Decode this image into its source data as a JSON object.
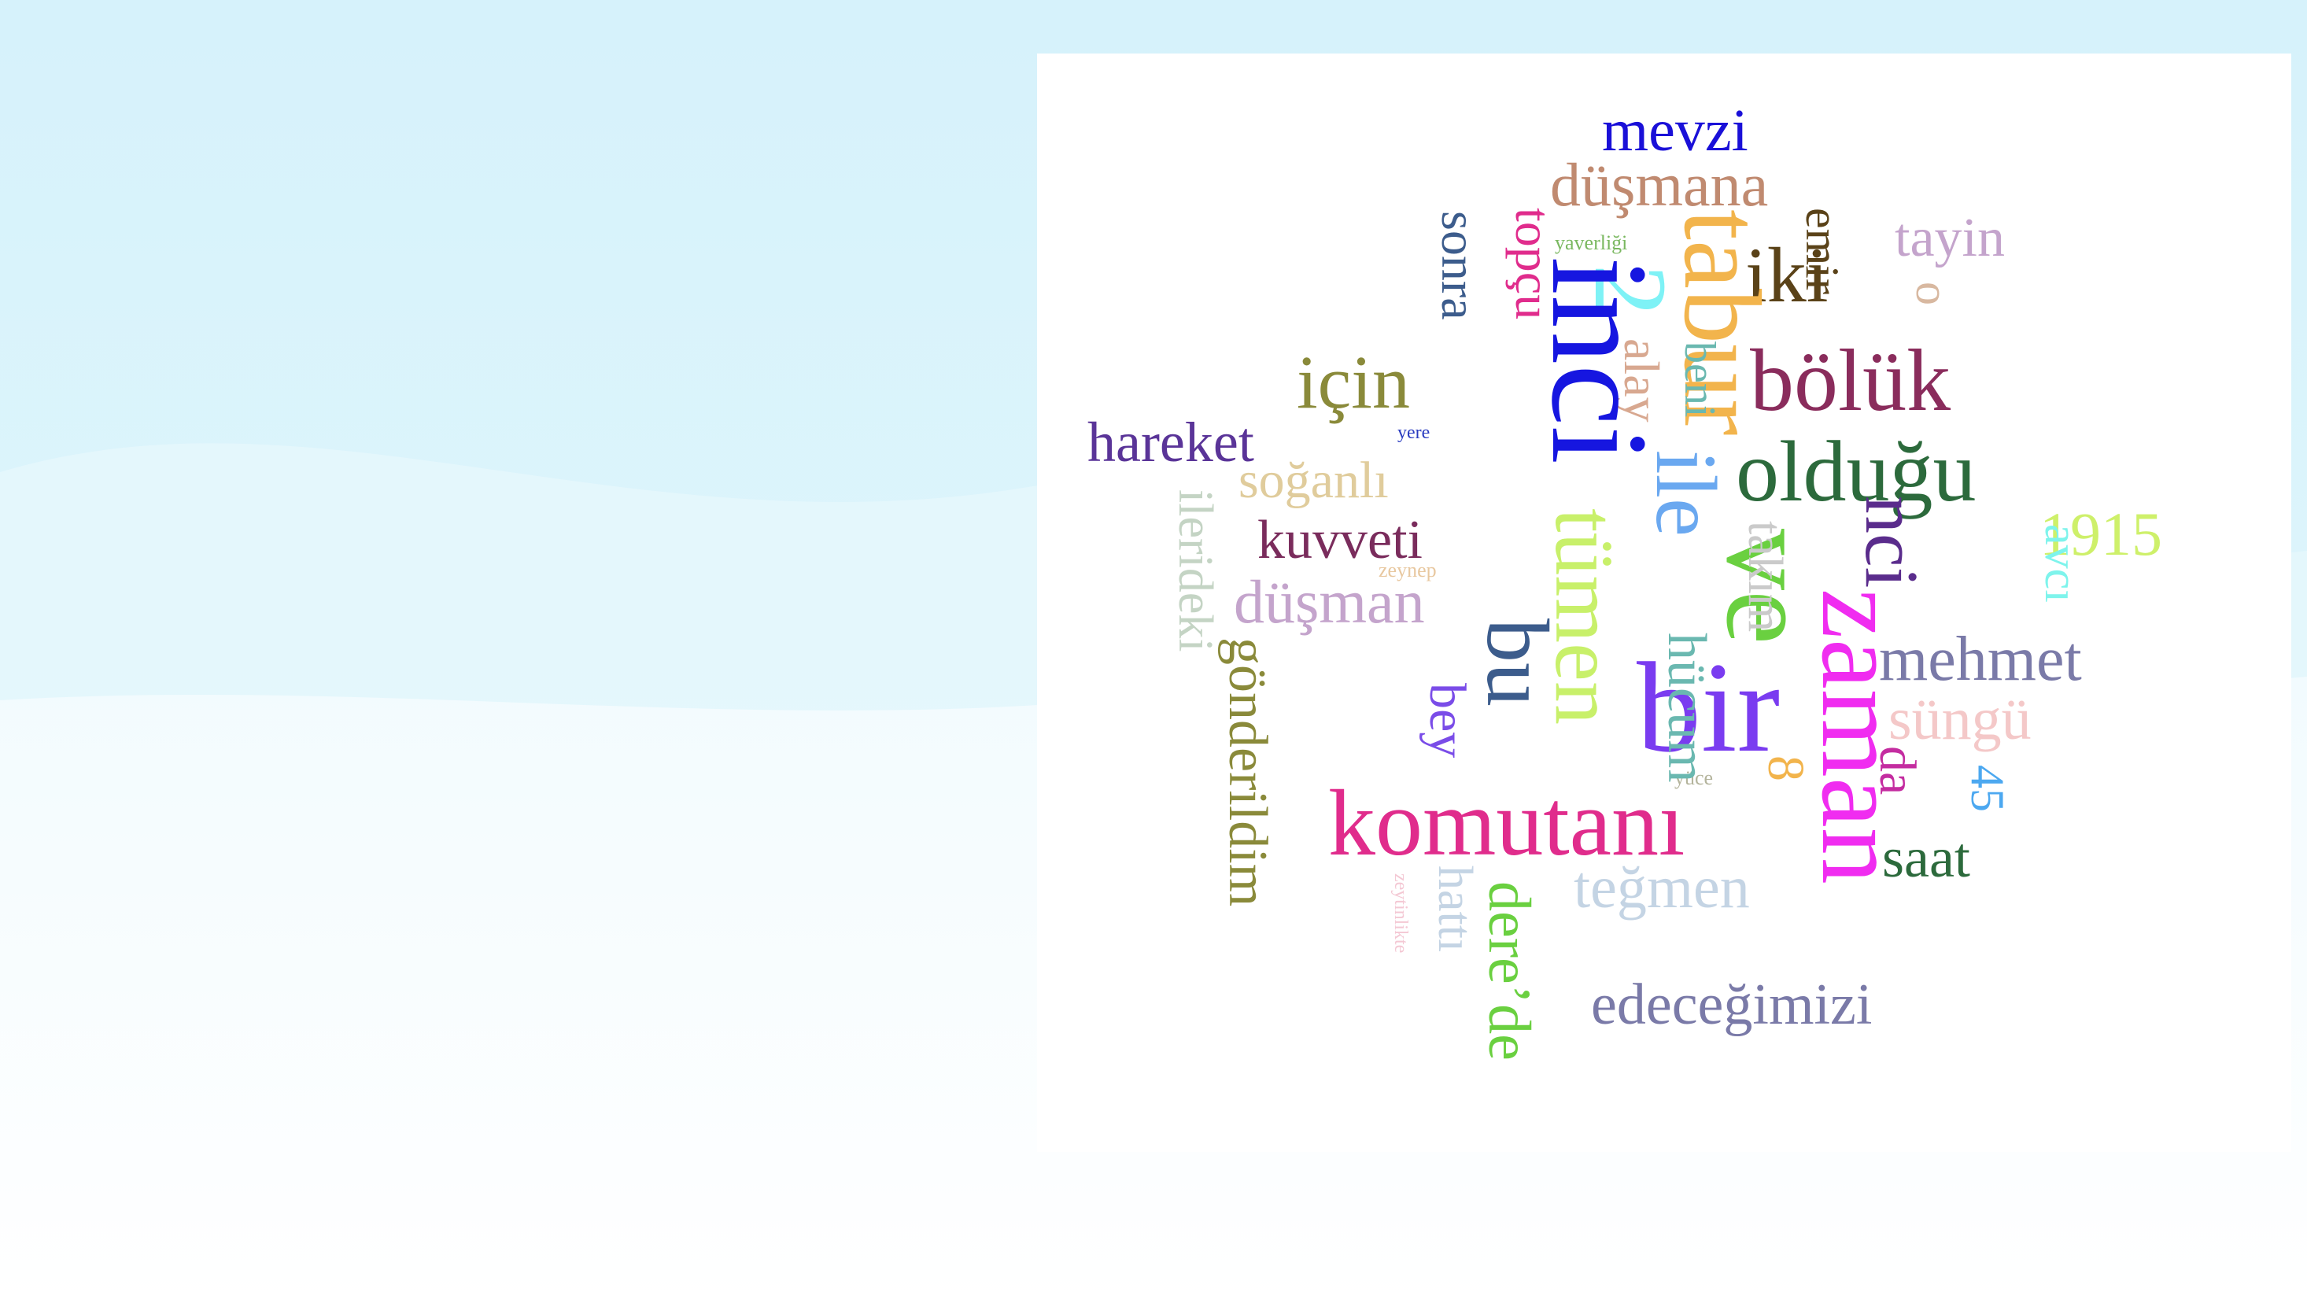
{
  "words": [
    {
      "text": "mevzi",
      "color": "#1a10d8"
    },
    {
      "text": "düşmana",
      "color": "#c08a70"
    },
    {
      "text": "tayin",
      "color": "#c4a4cc"
    },
    {
      "text": "o",
      "color": "#d8b8a0"
    },
    {
      "text": "emir",
      "color": "#5a4218"
    },
    {
      "text": "iki",
      "color": "#5a4218"
    },
    {
      "text": "tabur",
      "color": "#f2b44c"
    },
    {
      "text": "yaverliği",
      "color": "#7ab860"
    },
    {
      "text": "2",
      "color": "#7ef2f6"
    },
    {
      "text": "beni",
      "color": "#6ab8b0"
    },
    {
      "text": "alay",
      "color": "#d8a890"
    },
    {
      "text": "inci",
      "color": "#1616e0"
    },
    {
      "text": "sonra",
      "color": "#3c5c8c"
    },
    {
      "text": "topçu",
      "color": "#e02c8c"
    },
    {
      "text": "için",
      "color": "#8a8a3a"
    },
    {
      "text": "bölük",
      "color": "#8a2c5c"
    },
    {
      "text": "hareket",
      "color": "#5a3498"
    },
    {
      "text": "yere",
      "color": "#2a3cc0"
    },
    {
      "text": "soğanlı",
      "color": "#e0cc9c"
    },
    {
      "text": "olduğu",
      "color": "#2c6a3c"
    },
    {
      "text": "ile",
      "color": "#6aa8f0"
    },
    {
      "text": "ve",
      "color": "#6ad040"
    },
    {
      "text": "nci",
      "color": "#5a2c8c"
    },
    {
      "text": "avcı",
      "color": "#7ef4ec"
    },
    {
      "text": "1915",
      "color": "#cef06a"
    },
    {
      "text": "ilerideki",
      "color": "#c4d4c4"
    },
    {
      "text": "kuvveti",
      "color": "#7a2c5c"
    },
    {
      "text": "zeynep",
      "color": "#e8c8a0"
    },
    {
      "text": "tümen",
      "color": "#c8f06a"
    },
    {
      "text": "takım",
      "color": "#cacaca"
    },
    {
      "text": "zaman",
      "color": "#f02cf0"
    },
    {
      "text": "düşman",
      "color": "#c4a4cc"
    },
    {
      "text": "mehmet",
      "color": "#7a7aa8"
    },
    {
      "text": "bu",
      "color": "#3c5c8c"
    },
    {
      "text": "hücum",
      "color": "#6ab8b0"
    },
    {
      "text": "bir",
      "color": "#7a3cf0"
    },
    {
      "text": "süngü",
      "color": "#f4c8c8"
    },
    {
      "text": "gönderildim",
      "color": "#8a8a3a"
    },
    {
      "text": "bey",
      "color": "#7a4ce8"
    },
    {
      "text": "yüce",
      "color": "#b4b49c"
    },
    {
      "text": "8",
      "color": "#f2b44c"
    },
    {
      "text": "da",
      "color": "#c42ca0"
    },
    {
      "text": "45",
      "color": "#4ca8f0"
    },
    {
      "text": "komutanı",
      "color": "#e02c8c"
    },
    {
      "text": "saat",
      "color": "#2c6a3c"
    },
    {
      "text": "zeytinlikte",
      "color": "#f4c8d4"
    },
    {
      "text": "hattı",
      "color": "#c4d4e4"
    },
    {
      "text": "dere’de",
      "color": "#6ad040"
    },
    {
      "text": "teğmen",
      "color": "#c4d4e4"
    },
    {
      "text": "edeceğimizi",
      "color": "#7a7aa8"
    }
  ]
}
